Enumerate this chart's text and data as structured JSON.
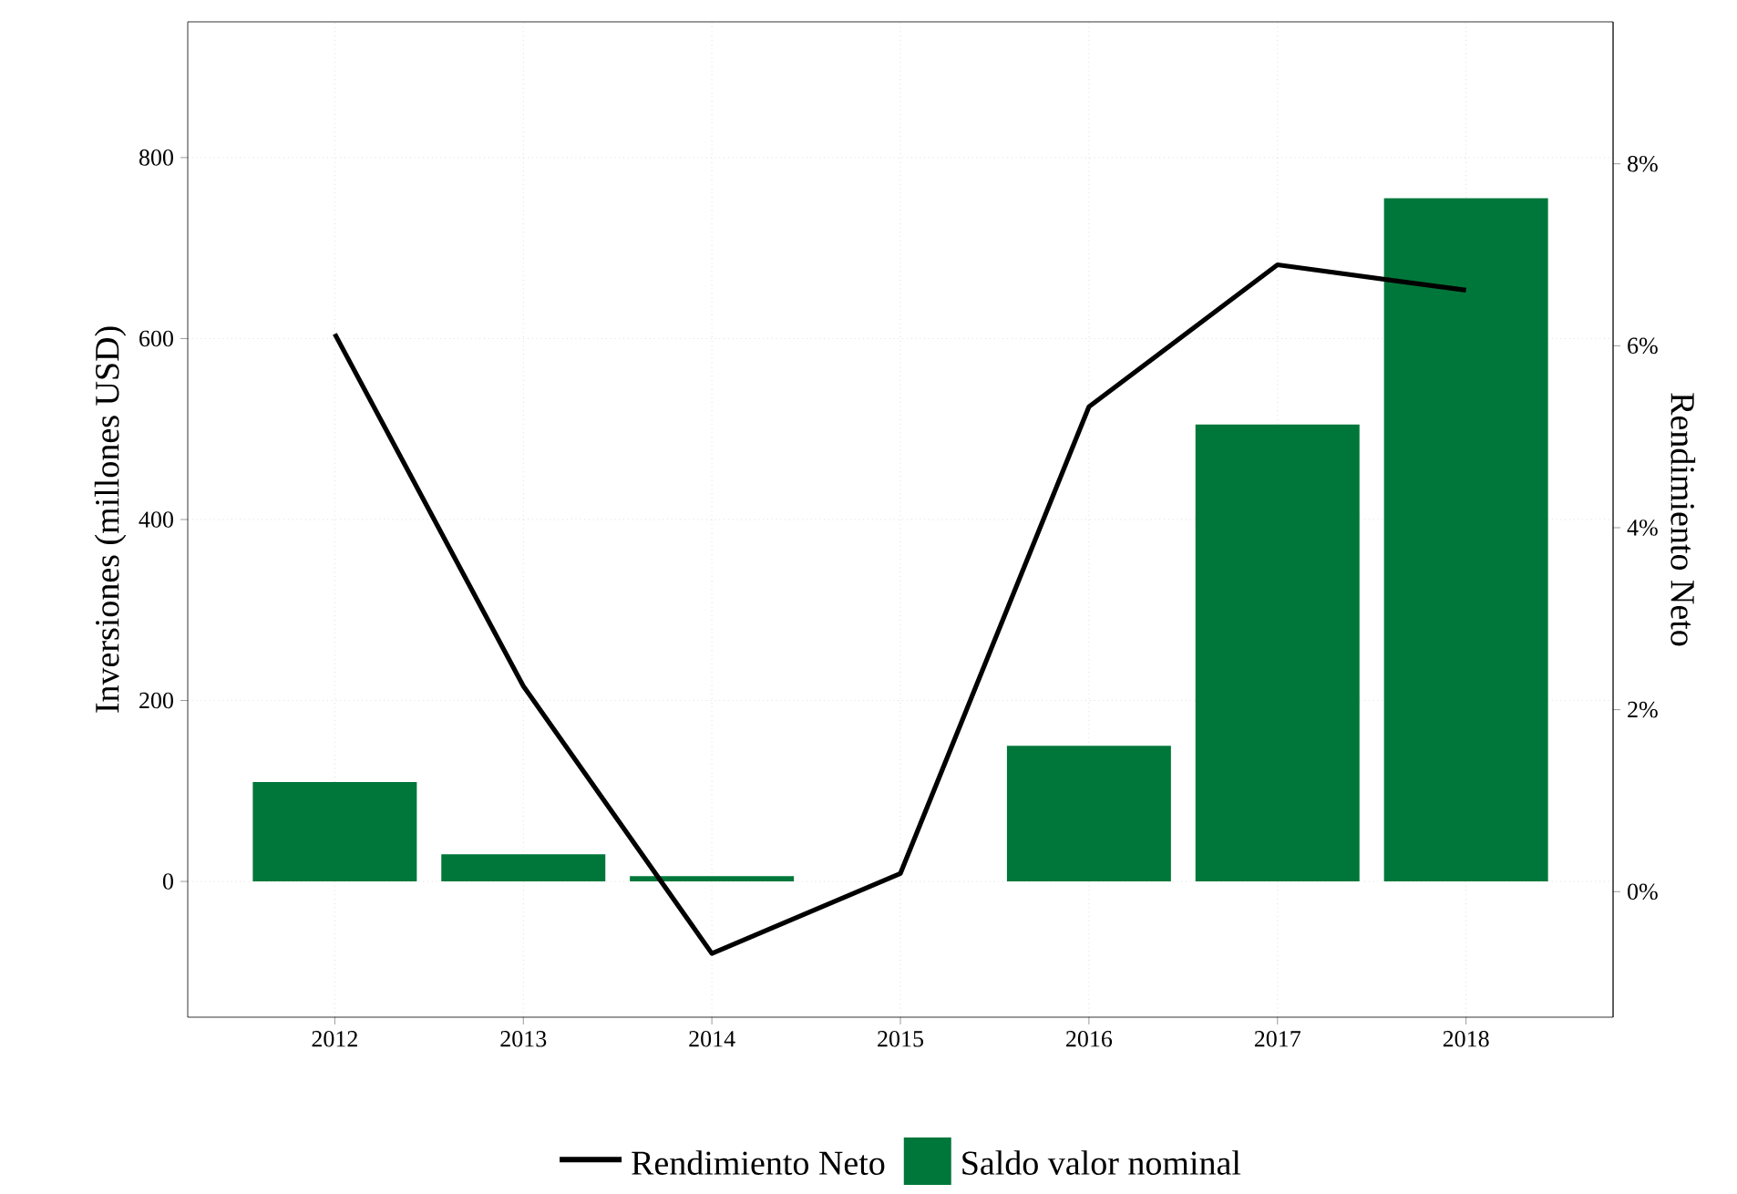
{
  "chart_data": {
    "type": "bar",
    "categories": [
      "2012",
      "2013",
      "2014",
      "2015",
      "2016",
      "2017",
      "2018"
    ],
    "series": [
      {
        "name": "Rendimiento Neto",
        "type": "line",
        "axis": "y2",
        "color": "#000000",
        "values": [
          6.13,
          2.26,
          -0.68,
          0.2,
          5.33,
          6.89,
          6.61
        ]
      },
      {
        "name": "Saldo valor nominal",
        "color": "#00773a",
        "values": [
          110,
          30,
          6,
          null,
          150,
          505,
          755
        ]
      }
    ],
    "ylabel": "Inversiones (millones USD)",
    "y2label": "Rendimiento Neto",
    "ylim": [
      -150,
      950
    ],
    "yticks": [
      0,
      200,
      400,
      600,
      800
    ],
    "y2lim": [
      -1.38,
      9.56
    ],
    "y2ticks": [
      {
        "value": 0,
        "label": "0%"
      },
      {
        "value": 2,
        "label": "2%"
      },
      {
        "value": 4,
        "label": "4%"
      },
      {
        "value": 6,
        "label": "6%"
      },
      {
        "value": 8,
        "label": "8%"
      }
    ],
    "grid": true,
    "legend": "bottom"
  }
}
